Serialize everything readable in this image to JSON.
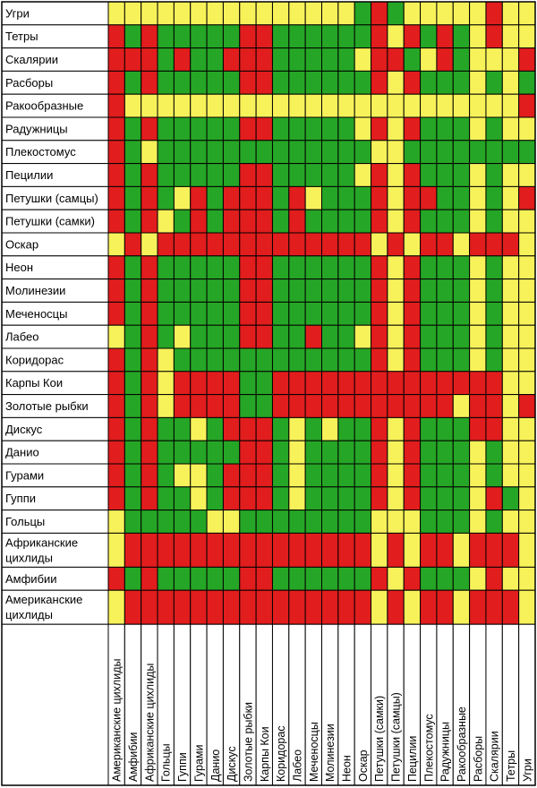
{
  "chart_data": {
    "type": "heatmap",
    "title": "",
    "colors": {
      "R": "#e11d1d",
      "G": "#26a626",
      "Y": "#f8f25a"
    },
    "rows": [
      {
        "label": "Угри",
        "values": "YYYYYYYYYYYYYYYGRGYYYYYRYY"
      },
      {
        "label": "Тетры",
        "values": "RGRGGGGGRRGGGGGGRYRGRGYRYY"
      },
      {
        "label": "Скалярии",
        "values": "RRRGRGGRRRGGGGGYRRGYRGYYYR"
      },
      {
        "label": "Расборы",
        "values": "RGRGGGGGRRGGGGGGRYRGGGYGYG"
      },
      {
        "label": "Ракообразные",
        "values": "RYYYYYYYYYYYYYYYYYYYYYYYYR"
      },
      {
        "label": "Радужницы",
        "values": "RGRGGGGGRRGGGGGYRYRGGGYGYY"
      },
      {
        "label": "Плекостомус",
        "values": "RGYGGGGGGGGGGGGGYYGGGGGGGG"
      },
      {
        "label": "Пецилии",
        "values": "RGRGGGGGRRGGGGGYRYRGGGYGYY"
      },
      {
        "label": "Петушки (самцы)",
        "values": "RGRGYRGRRRGRYGGGRYRRGGYGYR"
      },
      {
        "label": "Петушки (самки)",
        "values": "RGRYGRGRRRGRGGGGRYRGGGYGYY"
      },
      {
        "label": "Оскар",
        "values": "YRYRRRRRRRRRRRRRYRYRRYRRRY"
      },
      {
        "label": "Неон",
        "values": "RGRGGGGGRRGGGGGGRYRGGGYGYY"
      },
      {
        "label": "Молинезии",
        "values": "RGRGGGGGRRGGGGGGRYRGGGYGYY"
      },
      {
        "label": "Меченосцы",
        "values": "RGRGGGGGRRGGGGGGRYRGGGYGYY"
      },
      {
        "label": "Лабео",
        "values": "YGRGYGGGRRGGRGGYRYRGGGYGYY"
      },
      {
        "label": "Коридорас",
        "values": "RGRYGGGGGGGGGGGGRYRGGGYGYY"
      },
      {
        "label": "Карпы Кои",
        "values": "RGRYRRRRGGRRRRRRRRRRRRRRYY"
      },
      {
        "label": "Золотые рыбки",
        "values": "RGRYRRRRGGRRRRRRRRRRRYRRYR"
      },
      {
        "label": "Дискус",
        "values": "RGRGGYGRRRGYGYGGRYRGGGRRYY"
      },
      {
        "label": "Данио",
        "values": "RGRGGGGGRRGYGGGGRYRGGGYGYY"
      },
      {
        "label": "Гурами",
        "values": "RGRGYYGRRRGYGGGGRYRGGGYGYY"
      },
      {
        "label": "Гуппи",
        "values": "RGRGGYGRRRGYGGGGRYRGGGYRGY"
      },
      {
        "label": "Гольцы",
        "values": "YGGGGGYYGGGGGGGGYYYGGGYGYY"
      },
      {
        "label": "Африканские цихлиды",
        "values": "YRRRRRRRRRRRRRRRYRYRRYRRRY"
      },
      {
        "label": "Амфибии",
        "values": "RGRGGGGGRRGGGGGGRYRGGGYRYY"
      },
      {
        "label": "Американские цихлиды",
        "values": "YRRRRRRRRRRRRRRRYRYRRYRRRY"
      }
    ],
    "columns": [
      "Американские цихлиды",
      "Амфибии",
      "Африканские цихлиды",
      "Гольцы",
      "Гуппи",
      "Гурами",
      "Данио",
      "Дискус",
      "Золотые рыбки",
      "Карпы Кои",
      "Коридорас",
      "Лабео",
      "Меченосцы",
      "Молинезии",
      "Неон",
      "Оскар",
      "Петушки (самки)",
      "Петушки (самцы)",
      "Пецилии",
      "Плекостомус",
      "Радужницы",
      "Ракообразные",
      "Расборы",
      "Скалярии",
      "Тетры",
      "Угри"
    ]
  }
}
